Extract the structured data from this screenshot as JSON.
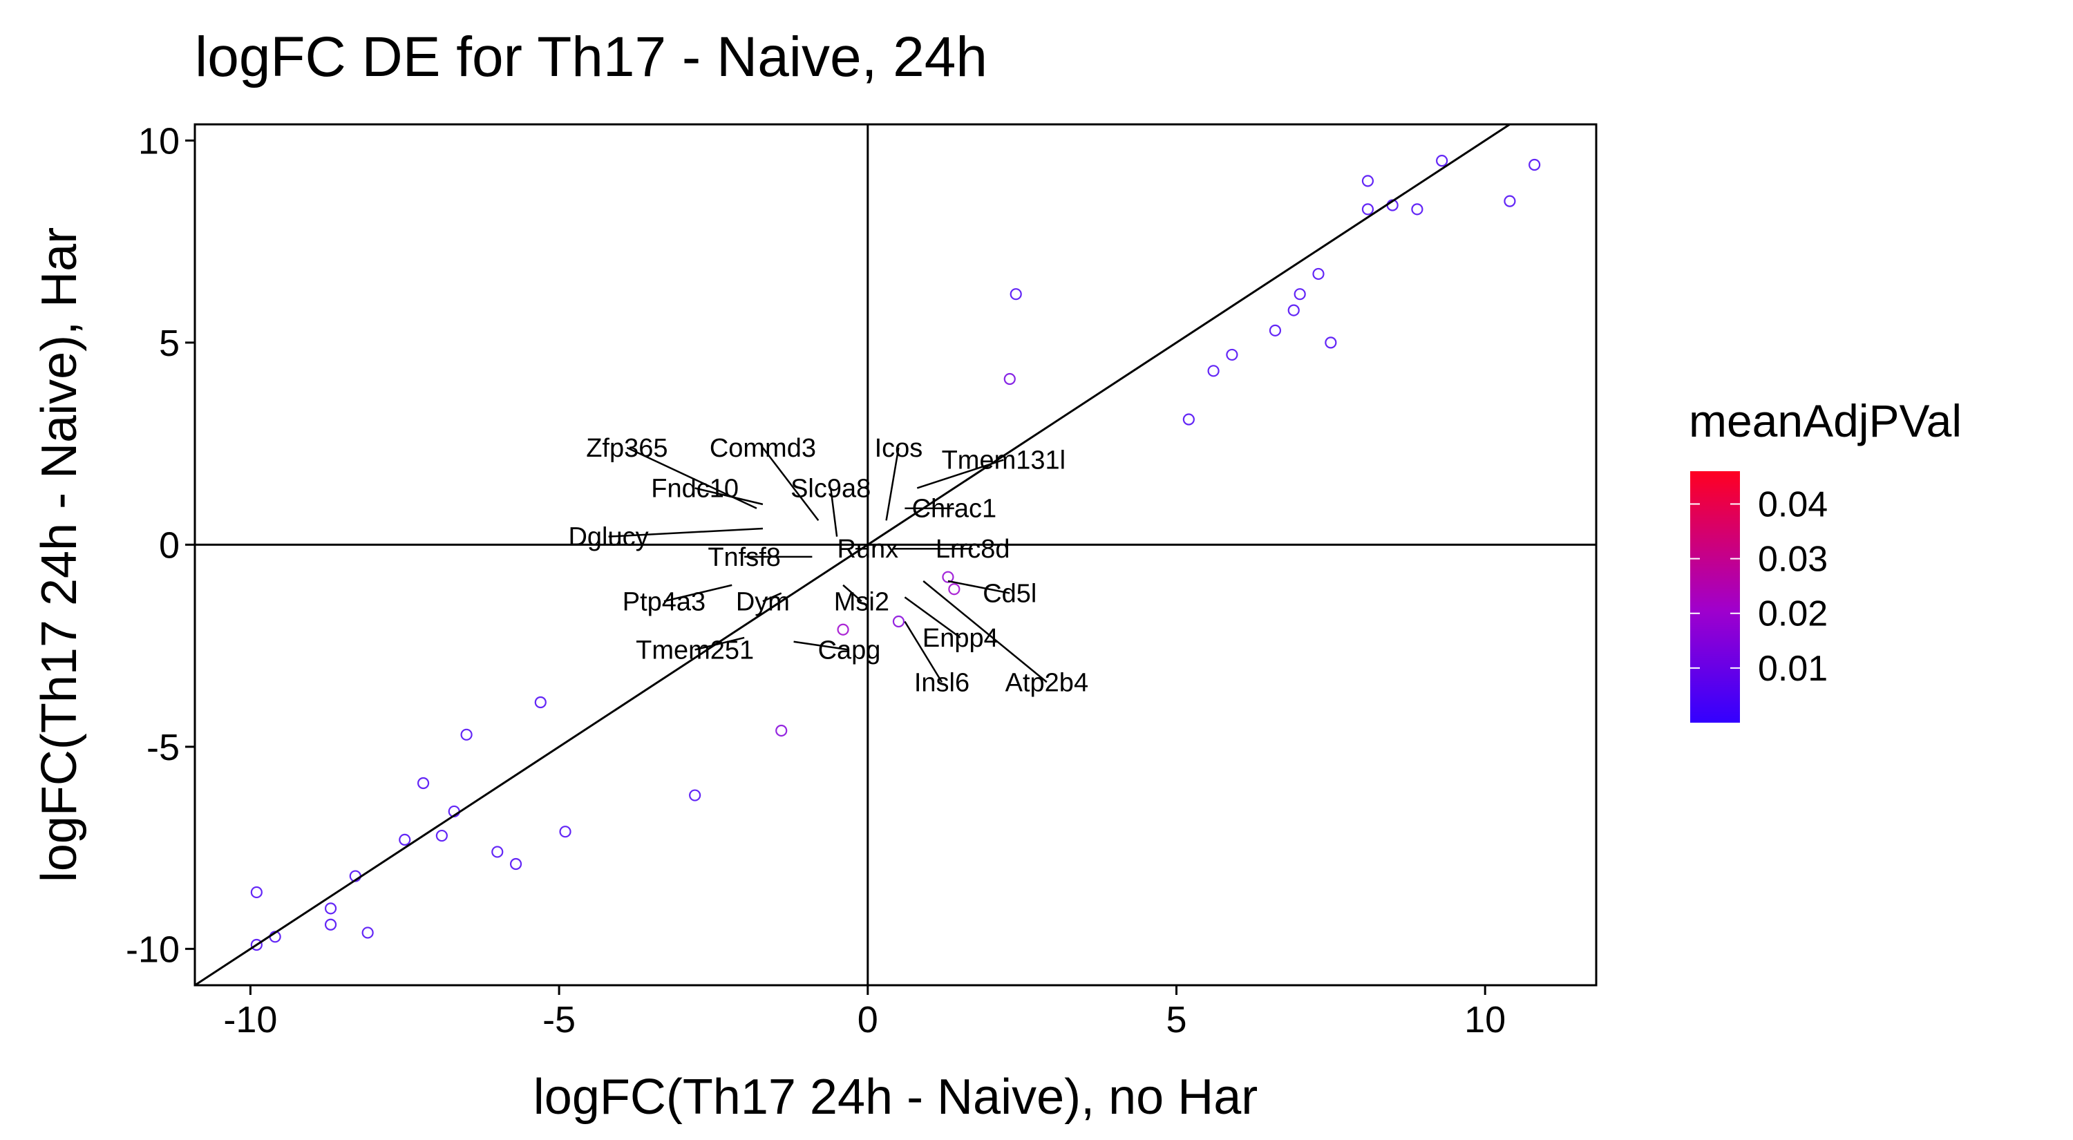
{
  "chart_data": {
    "type": "scatter",
    "title": "logFC DE for Th17 - Naive, 24h",
    "xlabel": "logFC(Th17 24h - Naive), no Har",
    "ylabel": "logFC(Th17 24h - Naive), Har",
    "xlim": [
      -10.9,
      11.8
    ],
    "ylim": [
      -10.9,
      10.4
    ],
    "xticks": [
      -10,
      -5,
      0,
      5,
      10
    ],
    "yticks": [
      -10,
      -5,
      0,
      5,
      10
    ],
    "xtick_labels": [
      "-10",
      "-5",
      "0",
      "5",
      "10"
    ],
    "ytick_labels": [
      "-10",
      "-5",
      "0",
      "5",
      "10"
    ],
    "reference_lines": {
      "x": 0,
      "y": 0,
      "diagonal_slope": 1
    },
    "legend": {
      "title": "meanAdjPVal",
      "position": "right",
      "range": [
        0,
        0.046
      ],
      "ticks": [
        0.01,
        0.02,
        0.03,
        0.04
      ],
      "tick_labels": [
        "0.01",
        "0.02",
        "0.03",
        "0.04"
      ],
      "low_color": "#3300ff",
      "mid_color": "#a000cc",
      "high_color": "#ff0022"
    },
    "grid": false,
    "point_style": "open-circle",
    "points": [
      [
        10.8,
        9.4,
        0.004
      ],
      [
        10.4,
        8.5,
        0.004
      ],
      [
        9.3,
        9.5,
        0.004
      ],
      [
        8.9,
        8.3,
        0.004
      ],
      [
        8.5,
        8.4,
        0.004
      ],
      [
        8.1,
        9.0,
        0.004
      ],
      [
        8.1,
        8.3,
        0.004
      ],
      [
        7.5,
        5.0,
        0.004
      ],
      [
        7.3,
        6.7,
        0.004
      ],
      [
        7.0,
        6.2,
        0.004
      ],
      [
        6.9,
        5.8,
        0.004
      ],
      [
        6.6,
        5.3,
        0.004
      ],
      [
        5.9,
        4.7,
        0.004
      ],
      [
        5.6,
        4.3,
        0.004
      ],
      [
        5.2,
        3.1,
        0.004
      ],
      [
        -9.9,
        -9.9,
        0.004
      ],
      [
        -9.9,
        -8.6,
        0.004
      ],
      [
        -9.6,
        -9.7,
        0.004
      ],
      [
        -8.7,
        -9.0,
        0.004
      ],
      [
        -8.7,
        -9.4,
        0.004
      ],
      [
        -8.3,
        -8.2,
        0.004
      ],
      [
        -8.1,
        -9.6,
        0.004
      ],
      [
        -7.5,
        -7.3,
        0.004
      ],
      [
        -7.2,
        -5.9,
        0.004
      ],
      [
        -6.9,
        -7.2,
        0.004
      ],
      [
        -6.7,
        -6.6,
        0.004
      ],
      [
        -6.5,
        -4.7,
        0.004
      ],
      [
        -6.0,
        -7.6,
        0.004
      ],
      [
        -5.7,
        -7.9,
        0.004
      ],
      [
        -5.3,
        -3.9,
        0.004
      ],
      [
        -4.9,
        -7.1,
        0.004
      ],
      [
        -2.8,
        -6.2,
        0.004
      ],
      [
        -1.4,
        -4.6,
        0.015
      ],
      [
        2.4,
        6.2,
        0.004
      ],
      [
        2.3,
        4.1,
        0.012
      ],
      [
        1.4,
        -1.1,
        0.02
      ],
      [
        1.3,
        -0.8,
        0.018
      ],
      [
        -0.4,
        -2.1,
        0.02
      ],
      [
        0.5,
        -1.9,
        0.015
      ]
    ],
    "labels": [
      {
        "text": "Zfp365",
        "x": -1.8,
        "y": 0.9,
        "label_x": -3.9,
        "label_y": 2.4
      },
      {
        "text": "Commd3",
        "x": -0.8,
        "y": 0.6,
        "label_x": -1.7,
        "label_y": 2.4
      },
      {
        "text": "Icos",
        "x": 0.3,
        "y": 0.6,
        "label_x": 0.5,
        "label_y": 2.4
      },
      {
        "text": "Fndc10",
        "x": -1.7,
        "y": 1.0,
        "label_x": -2.8,
        "label_y": 1.4
      },
      {
        "text": "Slc9a8",
        "x": -0.5,
        "y": 0.2,
        "label_x": -0.6,
        "label_y": 1.4
      },
      {
        "text": "Tmem131l",
        "x": 0.8,
        "y": 1.4,
        "label_x": 2.2,
        "label_y": 2.1
      },
      {
        "text": "Chrac1",
        "x": 0.6,
        "y": 0.9,
        "label_x": 1.4,
        "label_y": 0.9
      },
      {
        "text": "Dglucy",
        "x": -1.7,
        "y": 0.4,
        "label_x": -4.2,
        "label_y": 0.2
      },
      {
        "text": "Tnfsf8",
        "x": -0.9,
        "y": -0.3,
        "label_x": -2.0,
        "label_y": -0.3
      },
      {
        "text": "Runx",
        "x": -0.2,
        "y": -0.1,
        "label_x": 0.0,
        "label_y": -0.1
      },
      {
        "text": "Lrrc8d",
        "x": 0.4,
        "y": -0.1,
        "label_x": 1.7,
        "label_y": -0.1
      },
      {
        "text": "Cd5l",
        "x": 1.3,
        "y": -0.9,
        "label_x": 2.3,
        "label_y": -1.2
      },
      {
        "text": "Ptp4a3",
        "x": -2.2,
        "y": -1.0,
        "label_x": -3.3,
        "label_y": -1.4
      },
      {
        "text": "Dym",
        "x": -1.4,
        "y": -1.2,
        "label_x": -1.7,
        "label_y": -1.4
      },
      {
        "text": "Msi2",
        "x": -0.4,
        "y": -1.0,
        "label_x": -0.1,
        "label_y": -1.4
      },
      {
        "text": "Enpp4",
        "x": 0.6,
        "y": -1.3,
        "label_x": 1.5,
        "label_y": -2.3
      },
      {
        "text": "Tmem251",
        "x": -2.0,
        "y": -2.3,
        "label_x": -2.8,
        "label_y": -2.6
      },
      {
        "text": "Capg",
        "x": -1.2,
        "y": -2.4,
        "label_x": -0.3,
        "label_y": -2.6
      },
      {
        "text": "Insl6",
        "x": 0.6,
        "y": -1.9,
        "label_x": 1.2,
        "label_y": -3.4
      },
      {
        "text": "Atp2b4",
        "x": 0.9,
        "y": -0.9,
        "label_x": 2.9,
        "label_y": -3.4
      }
    ]
  }
}
